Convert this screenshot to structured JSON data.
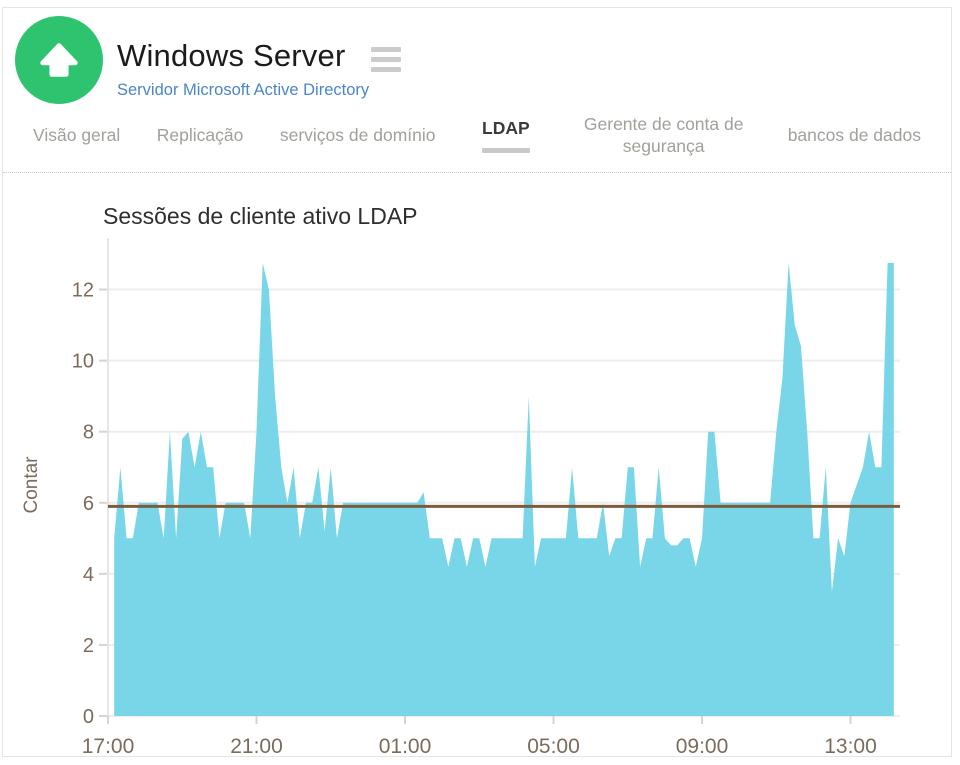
{
  "header": {
    "title": "Windows Server",
    "subtitle": "Servidor Microsoft Active Directory",
    "logo_color": "#2ec46f",
    "subtitle_color": "#4a86c8",
    "logo_icon": "arrow-up",
    "menu_icon": "hamburger"
  },
  "tabs": {
    "items": [
      {
        "label": "Visão geral",
        "active": false
      },
      {
        "label": "Replicação",
        "active": false
      },
      {
        "label": "serviços de domínio",
        "active": false
      },
      {
        "label": "LDAP",
        "active": true
      },
      {
        "label": "Gerente de conta de segurança",
        "active": false
      },
      {
        "label": "bancos de dados",
        "active": false
      }
    ]
  },
  "chart_data": {
    "type": "area",
    "title": "Sessões de cliente ativo LDAP",
    "xlabel": "",
    "ylabel": "Contar",
    "ylim": [
      0,
      13
    ],
    "yticks": [
      0,
      2,
      4,
      6,
      8,
      10,
      12
    ],
    "x_tick_labels": [
      "17:00",
      "21:00",
      "01:00",
      "05:00",
      "09:00",
      "13:00"
    ],
    "x_tick_minutes": [
      0,
      240,
      480,
      720,
      960,
      1200
    ],
    "x_domain_minutes": [
      0,
      1280
    ],
    "x_start_minute": 10,
    "x_step_minutes": 10,
    "grid": true,
    "legend": false,
    "area_color": "#79d6e8",
    "gridline_color": "#ededed",
    "axis_text_color": "#7c6b5b",
    "threshold_line": {
      "value": 5.9,
      "color": "#7b5c3d"
    },
    "values": [
      5,
      7,
      5,
      5,
      6,
      6,
      6,
      6,
      5,
      8,
      5,
      7.8,
      8,
      7,
      8,
      7,
      7,
      5,
      6,
      6,
      6,
      6,
      5,
      8,
      12.75,
      12,
      9,
      7,
      6,
      7,
      5,
      6,
      6,
      7,
      5.2,
      7,
      5,
      6,
      6,
      6,
      6,
      6,
      6,
      6,
      6,
      6,
      6,
      6,
      6,
      6,
      6.3,
      5,
      5,
      5,
      4.2,
      5,
      5,
      4.2,
      5,
      5,
      4.2,
      5,
      5,
      5,
      5,
      5,
      5,
      9,
      4.2,
      5,
      5,
      5,
      5,
      5,
      7,
      5,
      5,
      5,
      5,
      6,
      4.5,
      5,
      5,
      7,
      7,
      4.2,
      5,
      5,
      7,
      5,
      4.8,
      4.8,
      5,
      5,
      4.2,
      5,
      8,
      8,
      6,
      6,
      6,
      6,
      6,
      6,
      6,
      6,
      6,
      8,
      9.5,
      12.75,
      11,
      10.4,
      8,
      5,
      5,
      7,
      3.5,
      5,
      4.5,
      6,
      6.5,
      7,
      8,
      7,
      7,
      12.75,
      12.75
    ]
  }
}
